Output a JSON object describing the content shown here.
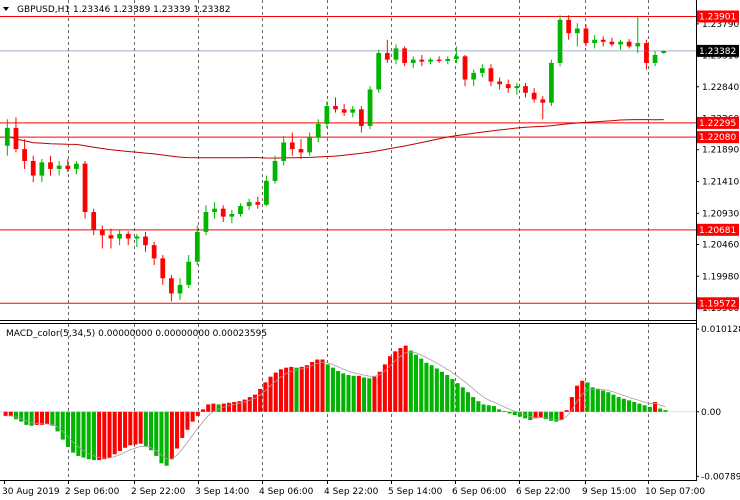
{
  "chart_data": [
    {
      "type": "candlestick",
      "symbol_header": "GBPUSD,H1  1.23346 1.23389 1.23339 1.23382",
      "ylim": [
        1.1935,
        1.2412
      ],
      "y_ticks": [
        "1.23790",
        "1.23310",
        "1.22840",
        "1.22360",
        "1.21890",
        "1.21410",
        "1.20930",
        "1.20460",
        "1.19980",
        "1.19500"
      ],
      "price_levels": [
        {
          "label": "1.23901",
          "value": 1.23901,
          "color": "#ff0000"
        },
        {
          "label": "1.22295",
          "value": 1.22295,
          "color": "#ff0000"
        },
        {
          "label": "1.22080",
          "value": 1.2208,
          "color": "#ff0000"
        },
        {
          "label": "1.20681",
          "value": 1.20681,
          "color": "#ff0000"
        },
        {
          "label": "1.19572",
          "value": 1.19572,
          "color": "#ff0000"
        }
      ],
      "current_price": {
        "label": "1.23382",
        "value": 1.23382,
        "color": "#000000"
      },
      "bull_color": "#00b400",
      "bear_color": "#ff0000",
      "ma_color": "#c00000",
      "candles": [
        {
          "o": 1.2195,
          "h": 1.2235,
          "l": 1.218,
          "c": 1.2222
        },
        {
          "o": 1.2222,
          "h": 1.2238,
          "l": 1.2185,
          "c": 1.219
        },
        {
          "o": 1.219,
          "h": 1.2205,
          "l": 1.216,
          "c": 1.2172
        },
        {
          "o": 1.2172,
          "h": 1.218,
          "l": 1.214,
          "c": 1.215
        },
        {
          "o": 1.215,
          "h": 1.2175,
          "l": 1.214,
          "c": 1.217
        },
        {
          "o": 1.217,
          "h": 1.218,
          "l": 1.215,
          "c": 1.216
        },
        {
          "o": 1.216,
          "h": 1.2172,
          "l": 1.215,
          "c": 1.2165
        },
        {
          "o": 1.2165,
          "h": 1.2175,
          "l": 1.2155,
          "c": 1.216
        },
        {
          "o": 1.216,
          "h": 1.2172,
          "l": 1.2152,
          "c": 1.2168
        },
        {
          "o": 1.2168,
          "h": 1.2172,
          "l": 1.2085,
          "c": 1.2095
        },
        {
          "o": 1.2095,
          "h": 1.21,
          "l": 1.206,
          "c": 1.2068
        },
        {
          "o": 1.2068,
          "h": 1.2075,
          "l": 1.204,
          "c": 1.206
        },
        {
          "o": 1.206,
          "h": 1.207,
          "l": 1.204,
          "c": 1.2055
        },
        {
          "o": 1.2055,
          "h": 1.2068,
          "l": 1.2045,
          "c": 1.2062
        },
        {
          "o": 1.2062,
          "h": 1.2066,
          "l": 1.2045,
          "c": 1.2055
        },
        {
          "o": 1.2055,
          "h": 1.2062,
          "l": 1.2042,
          "c": 1.2058
        },
        {
          "o": 1.2058,
          "h": 1.2065,
          "l": 1.2035,
          "c": 1.2045
        },
        {
          "o": 1.2045,
          "h": 1.205,
          "l": 1.2015,
          "c": 1.2025
        },
        {
          "o": 1.2025,
          "h": 1.203,
          "l": 1.1985,
          "c": 1.1995
        },
        {
          "o": 1.1995,
          "h": 1.2,
          "l": 1.196,
          "c": 1.1972
        },
        {
          "o": 1.1972,
          "h": 1.1995,
          "l": 1.1962,
          "c": 1.1985
        },
        {
          "o": 1.1985,
          "h": 1.203,
          "l": 1.198,
          "c": 1.202
        },
        {
          "o": 1.202,
          "h": 1.2075,
          "l": 1.2015,
          "c": 1.2065
        },
        {
          "o": 1.2065,
          "h": 1.2105,
          "l": 1.206,
          "c": 1.2095
        },
        {
          "o": 1.2095,
          "h": 1.211,
          "l": 1.2085,
          "c": 1.21
        },
        {
          "o": 1.21,
          "h": 1.2105,
          "l": 1.208,
          "c": 1.2088
        },
        {
          "o": 1.2088,
          "h": 1.2098,
          "l": 1.2078,
          "c": 1.2092
        },
        {
          "o": 1.2092,
          "h": 1.2108,
          "l": 1.2088,
          "c": 1.2104
        },
        {
          "o": 1.2104,
          "h": 1.2115,
          "l": 1.2098,
          "c": 1.211
        },
        {
          "o": 1.211,
          "h": 1.2118,
          "l": 1.21,
          "c": 1.2106
        },
        {
          "o": 1.2106,
          "h": 1.215,
          "l": 1.2104,
          "c": 1.2142
        },
        {
          "o": 1.2142,
          "h": 1.218,
          "l": 1.2138,
          "c": 1.2172
        },
        {
          "o": 1.2172,
          "h": 1.221,
          "l": 1.2165,
          "c": 1.22
        },
        {
          "o": 1.22,
          "h": 1.2215,
          "l": 1.218,
          "c": 1.219
        },
        {
          "o": 1.219,
          "h": 1.2205,
          "l": 1.2175,
          "c": 1.2185
        },
        {
          "o": 1.2185,
          "h": 1.2215,
          "l": 1.218,
          "c": 1.2208
        },
        {
          "o": 1.2208,
          "h": 1.2235,
          "l": 1.22,
          "c": 1.2228
        },
        {
          "o": 1.2228,
          "h": 1.2262,
          "l": 1.2222,
          "c": 1.2255
        },
        {
          "o": 1.2255,
          "h": 1.2268,
          "l": 1.2245,
          "c": 1.225
        },
        {
          "o": 1.225,
          "h": 1.2258,
          "l": 1.224,
          "c": 1.2245
        },
        {
          "o": 1.2245,
          "h": 1.2255,
          "l": 1.2238,
          "c": 1.225
        },
        {
          "o": 1.225,
          "h": 1.2255,
          "l": 1.2215,
          "c": 1.2225
        },
        {
          "o": 1.2225,
          "h": 1.2285,
          "l": 1.222,
          "c": 1.228
        },
        {
          "o": 1.228,
          "h": 1.234,
          "l": 1.2275,
          "c": 1.2335
        },
        {
          "o": 1.2335,
          "h": 1.2355,
          "l": 1.232,
          "c": 1.2325
        },
        {
          "o": 1.2325,
          "h": 1.2348,
          "l": 1.2318,
          "c": 1.2342
        },
        {
          "o": 1.2342,
          "h": 1.2345,
          "l": 1.2315,
          "c": 1.232
        },
        {
          "o": 1.232,
          "h": 1.233,
          "l": 1.2312,
          "c": 1.2325
        },
        {
          "o": 1.2325,
          "h": 1.2332,
          "l": 1.2315,
          "c": 1.2322
        },
        {
          "o": 1.2322,
          "h": 1.2328,
          "l": 1.2318,
          "c": 1.2325
        },
        {
          "o": 1.2325,
          "h": 1.233,
          "l": 1.232,
          "c": 1.2323
        },
        {
          "o": 1.2323,
          "h": 1.233,
          "l": 1.2318,
          "c": 1.2326
        },
        {
          "o": 1.2326,
          "h": 1.2345,
          "l": 1.232,
          "c": 1.233
        },
        {
          "o": 1.233,
          "h": 1.2332,
          "l": 1.2285,
          "c": 1.2295
        },
        {
          "o": 1.2295,
          "h": 1.231,
          "l": 1.2285,
          "c": 1.2305
        },
        {
          "o": 1.2305,
          "h": 1.2318,
          "l": 1.2298,
          "c": 1.2312
        },
        {
          "o": 1.2312,
          "h": 1.2318,
          "l": 1.2285,
          "c": 1.2292
        },
        {
          "o": 1.2292,
          "h": 1.2298,
          "l": 1.228,
          "c": 1.2288
        },
        {
          "o": 1.2288,
          "h": 1.2295,
          "l": 1.2275,
          "c": 1.2282
        },
        {
          "o": 1.2282,
          "h": 1.229,
          "l": 1.2272,
          "c": 1.2285
        },
        {
          "o": 1.2285,
          "h": 1.229,
          "l": 1.2268,
          "c": 1.2275
        },
        {
          "o": 1.2275,
          "h": 1.2282,
          "l": 1.226,
          "c": 1.2265
        },
        {
          "o": 1.2265,
          "h": 1.227,
          "l": 1.2235,
          "c": 1.226
        },
        {
          "o": 1.226,
          "h": 1.2325,
          "l": 1.2255,
          "c": 1.232
        },
        {
          "o": 1.232,
          "h": 1.2392,
          "l": 1.2315,
          "c": 1.2385
        },
        {
          "o": 1.2385,
          "h": 1.2392,
          "l": 1.2355,
          "c": 1.2365
        },
        {
          "o": 1.2365,
          "h": 1.238,
          "l": 1.2345,
          "c": 1.2372
        },
        {
          "o": 1.2372,
          "h": 1.2378,
          "l": 1.2345,
          "c": 1.235
        },
        {
          "o": 1.235,
          "h": 1.2362,
          "l": 1.2342,
          "c": 1.2355
        },
        {
          "o": 1.2355,
          "h": 1.236,
          "l": 1.2345,
          "c": 1.2352
        },
        {
          "o": 1.2352,
          "h": 1.2358,
          "l": 1.2345,
          "c": 1.2348
        },
        {
          "o": 1.2348,
          "h": 1.2355,
          "l": 1.234,
          "c": 1.2352
        },
        {
          "o": 1.2352,
          "h": 1.2356,
          "l": 1.2342,
          "c": 1.2345
        },
        {
          "o": 1.2345,
          "h": 1.239,
          "l": 1.2335,
          "c": 1.235
        },
        {
          "o": 1.235,
          "h": 1.2355,
          "l": 1.231,
          "c": 1.232
        },
        {
          "o": 1.232,
          "h": 1.2338,
          "l": 1.2315,
          "c": 1.2332
        },
        {
          "o": 1.2335,
          "h": 1.2339,
          "l": 1.2334,
          "c": 1.2338
        }
      ],
      "x_labels": [
        "30 Aug 2019",
        "2 Sep 06:00",
        "2 Sep 22:00",
        "3 Sep 14:00",
        "4 Sep 06:00",
        "4 Sep 22:00",
        "5 Sep 14:00",
        "6 Sep 06:00",
        "6 Sep 22:00",
        "9 Sep 15:00",
        "10 Sep 07:00"
      ]
    },
    {
      "type": "bar",
      "indicator_header": "MACD_color(5,34,5) 0.00000000 0.00000000 0.00023595",
      "ylim": [
        -0.0081,
        0.0105
      ],
      "y_ticks": [
        "0.0101283",
        "0.00",
        "-0.0078903"
      ],
      "positive_color": "#ff0000",
      "negative_color": "#00b400",
      "signal_color": "#a0a0a0",
      "histogram": [
        -0.0005,
        -0.0005,
        -0.0009,
        -0.0012,
        -0.0016,
        -0.0017,
        -0.0016,
        -0.0016,
        -0.0015,
        -0.0017,
        -0.0024,
        -0.0034,
        -0.0043,
        -0.005,
        -0.0054,
        -0.0056,
        -0.0058,
        -0.0059,
        -0.0059,
        -0.0058,
        -0.0056,
        -0.0052,
        -0.0048,
        -0.0044,
        -0.0041,
        -0.004,
        -0.0039,
        -0.0042,
        -0.0047,
        -0.0054,
        -0.0063,
        -0.0066,
        -0.0058,
        -0.0045,
        -0.0032,
        -0.0022,
        -0.0012,
        -0.0005,
        0.0003,
        0.0009,
        0.001,
        0.0009,
        0.001,
        0.0011,
        0.0012,
        0.0013,
        0.0015,
        0.0018,
        0.0021,
        0.0028,
        0.0036,
        0.0043,
        0.0048,
        0.0052,
        0.0054,
        0.0055,
        0.0054,
        0.0055,
        0.0057,
        0.0061,
        0.0064,
        0.0064,
        0.0058,
        0.0054,
        0.005,
        0.0047,
        0.0045,
        0.0044,
        0.0044,
        0.0042,
        0.0041,
        0.0043,
        0.0049,
        0.0058,
        0.0068,
        0.0074,
        0.0078,
        0.0081,
        0.0075,
        0.007,
        0.0065,
        0.006,
        0.0057,
        0.0053,
        0.0049,
        0.0045,
        0.004,
        0.0035,
        0.003,
        0.0024,
        0.0018,
        0.0013,
        0.0009,
        0.0008,
        0.0007,
        0.0003,
        0.0001,
        -0.0002,
        -0.0004,
        -0.0006,
        -0.0008,
        -0.001,
        -0.0008,
        -0.0007,
        -0.0009,
        -0.0011,
        -0.0012,
        -0.001,
        0.0002,
        0.0018,
        0.0032,
        0.0038,
        0.0036,
        0.003,
        0.0028,
        0.0026,
        0.0024,
        0.0021,
        0.0018,
        0.0016,
        0.0014,
        0.0012,
        0.001,
        0.0008,
        0.0006,
        0.0012,
        0.0004,
        0.0002
      ]
    }
  ]
}
